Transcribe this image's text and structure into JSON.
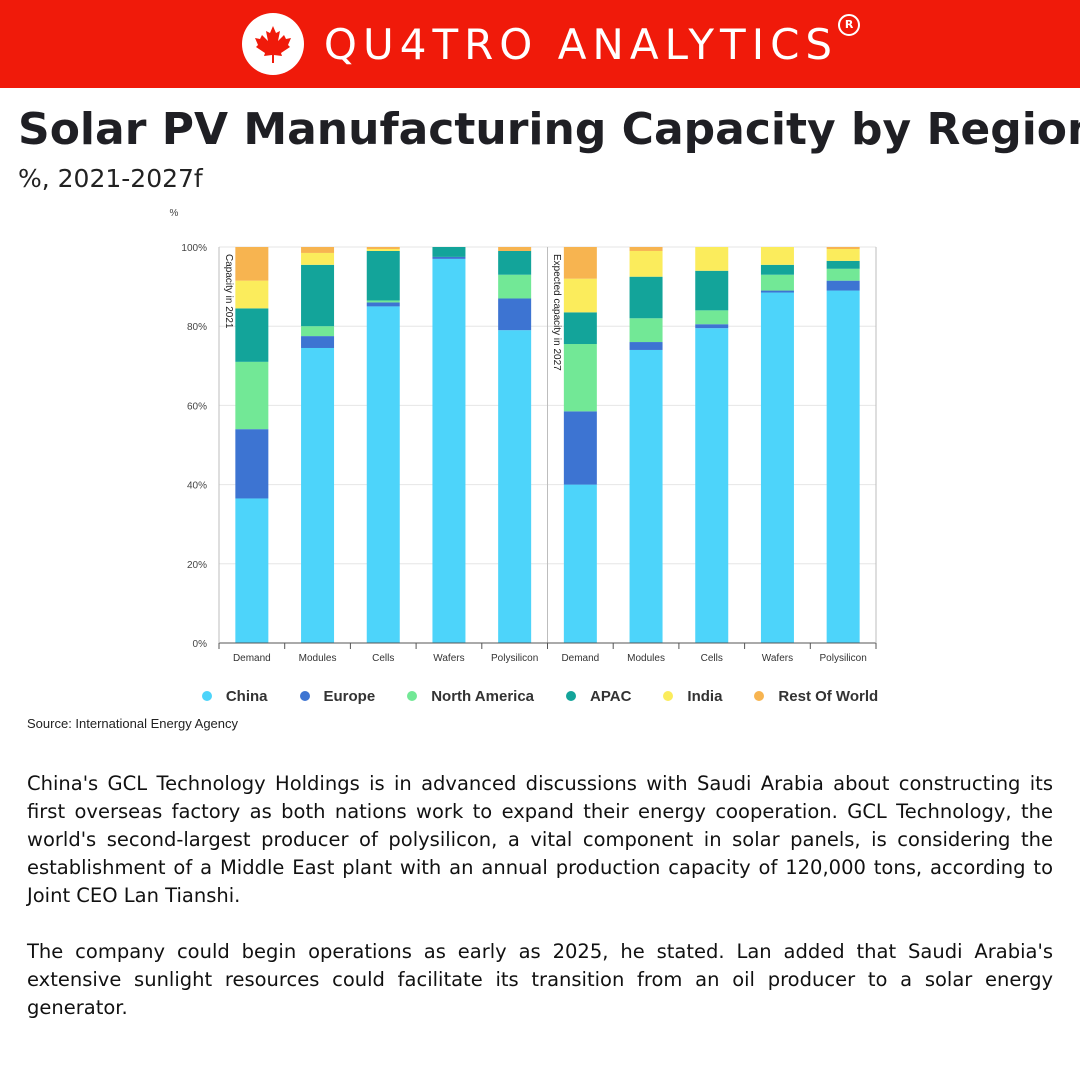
{
  "header": {
    "brand": "QU4TRO ANALYTICS",
    "registered_mark": "R",
    "logo_icon": "maple-leaf-icon",
    "bg_color": "#f01a0a"
  },
  "title": "Solar PV Manufacturing Capacity by Region",
  "subtitle": "%, 2021-2027f",
  "source": "Source: International Energy Agency",
  "body": {
    "paragraphs": [
      "China's GCL Technology Holdings is in advanced discussions with Saudi Arabia about constructing its first overseas factory as both nations work to expand their energy cooperation. GCL Technology, the world's second-largest producer of polysilicon, a vital component in solar panels, is considering the establishment of a Middle East plant with an annual production capacity of 120,000 tons, according to Joint CEO Lan Tianshi.",
      "The company could begin operations as early as 2025, he stated. Lan added that Saudi Arabia's extensive sunlight resources could facilitate its transition from an oil producer to a solar energy generator."
    ]
  },
  "chart_data": {
    "type": "bar",
    "stacked": true,
    "ylabel": "%",
    "ylim": [
      0,
      100
    ],
    "yticks": [
      "0%",
      "20%",
      "40%",
      "60%",
      "80%",
      "100%"
    ],
    "grid": true,
    "legend_position": "bottom",
    "categories": [
      "Demand",
      "Modules",
      "Cells",
      "Wafers",
      "Polysilicon",
      "Demand",
      "Modules",
      "Cells",
      "Wafers",
      "Polysilicon"
    ],
    "panel_labels": [
      "Capacity in 2021",
      "Expected capacity in 2027"
    ],
    "series": [
      {
        "name": "China",
        "color": "#4dd4fa",
        "values": [
          36.5,
          74.5,
          85,
          97,
          79,
          40,
          74,
          79.5,
          88.5,
          89
        ]
      },
      {
        "name": "Europe",
        "color": "#3d74d2",
        "values": [
          17.5,
          3,
          1,
          0.5,
          8,
          18.5,
          2,
          1,
          0.5,
          2.5
        ]
      },
      {
        "name": "North America",
        "color": "#72e896",
        "values": [
          17,
          2.5,
          0.5,
          0,
          6,
          17,
          6,
          3.5,
          4,
          3
        ]
      },
      {
        "name": "APAC",
        "color": "#13a49a",
        "values": [
          13.5,
          15.5,
          12.5,
          2.5,
          6,
          8,
          10.5,
          10,
          2.5,
          2
        ]
      },
      {
        "name": "India",
        "color": "#fbec5c",
        "values": [
          7,
          3,
          0.5,
          0,
          0,
          8.5,
          6.5,
          6,
          4.5,
          3
        ]
      },
      {
        "name": "Rest Of World",
        "color": "#f7b450",
        "values": [
          8.5,
          1.5,
          0.5,
          0,
          1,
          8,
          1,
          0,
          0,
          0.5
        ]
      }
    ]
  }
}
